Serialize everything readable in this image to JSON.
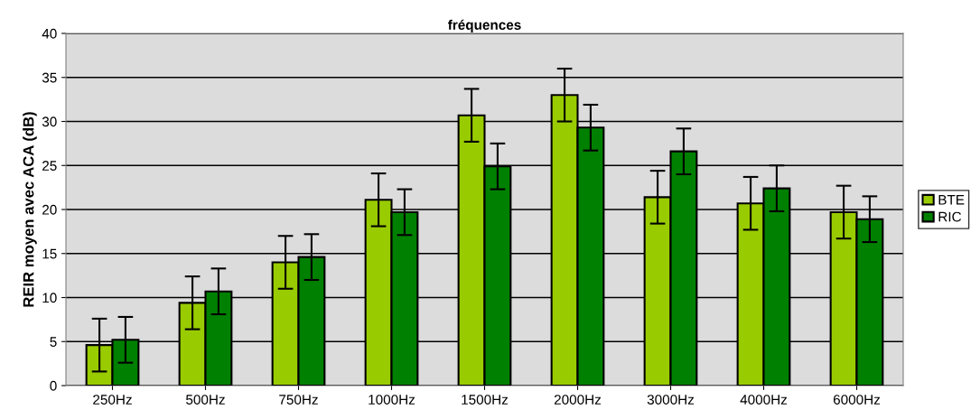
{
  "chart_data": {
    "type": "bar",
    "title": "fréquences",
    "ylabel": "REIR moyen avec ACA (dB)",
    "categories": [
      "250Hz",
      "500Hz",
      "750Hz",
      "1000Hz",
      "1500Hz",
      "2000Hz",
      "3000Hz",
      "4000Hz",
      "6000Hz"
    ],
    "series": [
      {
        "name": "BTE",
        "color": "#99cc00",
        "values": [
          4.6,
          9.4,
          14.0,
          21.1,
          30.7,
          33.0,
          21.4,
          20.7,
          19.7
        ],
        "errors": [
          3.0,
          3.0,
          3.0,
          3.0,
          3.0,
          3.0,
          3.0,
          3.0,
          3.0
        ]
      },
      {
        "name": "RIC",
        "color": "#008000",
        "values": [
          5.2,
          10.7,
          14.6,
          19.7,
          24.9,
          29.3,
          26.6,
          22.4,
          18.9
        ],
        "errors": [
          2.6,
          2.6,
          2.6,
          2.6,
          2.6,
          2.6,
          2.6,
          2.6,
          2.6
        ]
      }
    ],
    "ylim": [
      0,
      40
    ],
    "yticks": [
      0,
      5,
      10,
      15,
      20,
      25,
      30,
      35,
      40
    ],
    "grid": "y",
    "legend": "right"
  }
}
